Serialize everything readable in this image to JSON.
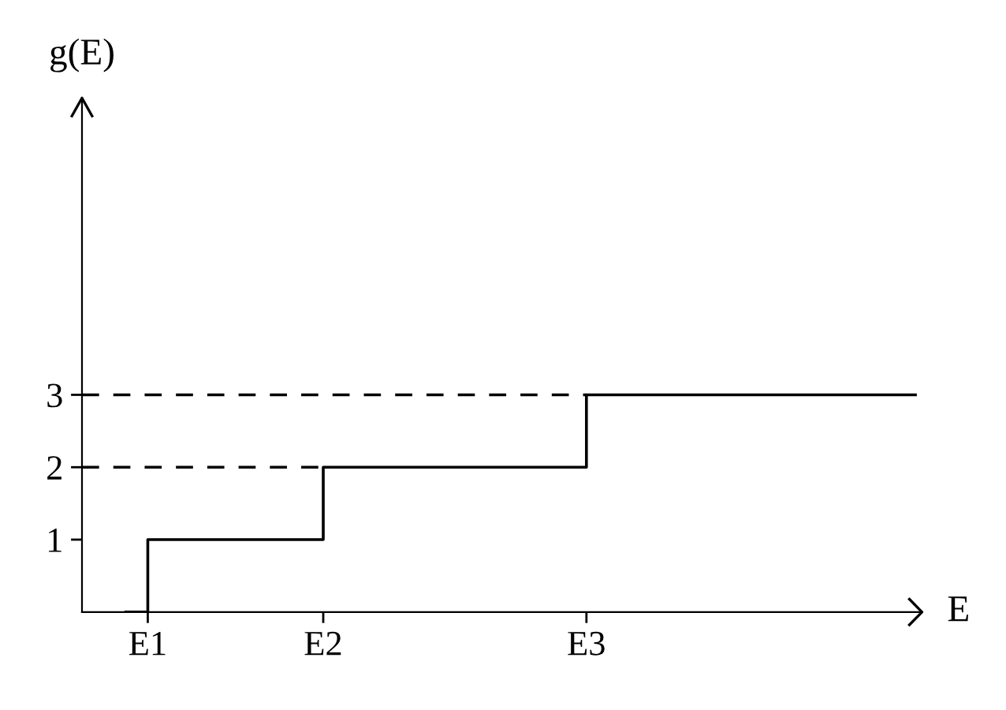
{
  "chart_data": {
    "type": "step",
    "xlabel": "E",
    "ylabel": "g(E)",
    "categories": [
      null,
      null,
      null,
      "E1",
      null,
      null,
      null,
      null,
      null,
      null,
      null,
      "E2",
      null,
      null,
      null,
      null,
      null,
      null,
      null,
      null,
      null,
      null,
      null,
      "E3",
      null,
      null,
      null,
      null,
      null,
      null,
      null,
      null,
      null,
      null,
      null,
      null,
      null,
      null,
      null
    ],
    "ylim": [
      0,
      7.1
    ],
    "yticks": [
      1,
      2,
      3
    ],
    "series": [
      {
        "color": "#000000",
        "line_style": "solid",
        "values": [
          null,
          null,
          0,
          1,
          1,
          1,
          1,
          1,
          1,
          1,
          1,
          2,
          2,
          2,
          2,
          2,
          2,
          2,
          2,
          2,
          2,
          2,
          2,
          3,
          3,
          3,
          3,
          3,
          3,
          3,
          3,
          3,
          3,
          3,
          3,
          3,
          3,
          3,
          3
        ]
      },
      {
        "type": "line",
        "color": "#000000",
        "line_style": "dashed",
        "values": [
          2,
          2,
          2,
          2,
          2,
          2,
          2,
          2,
          2,
          2,
          2,
          2,
          null,
          null,
          null,
          null,
          null,
          null,
          null,
          null,
          null,
          null,
          null,
          null,
          null,
          null,
          null,
          null,
          null,
          null,
          null,
          null,
          null,
          null,
          null,
          null,
          null,
          null,
          null
        ]
      },
      {
        "type": "line",
        "color": "#000000",
        "line_style": "dashed",
        "values": [
          3,
          3,
          3,
          3,
          3,
          3,
          3,
          3,
          3,
          3,
          3,
          3,
          3,
          3,
          3,
          3,
          3,
          3,
          3,
          3,
          3,
          3,
          3,
          3,
          null,
          null,
          null,
          null,
          null,
          null,
          null,
          null,
          null,
          null,
          null,
          null,
          null,
          null,
          null
        ]
      }
    ]
  }
}
